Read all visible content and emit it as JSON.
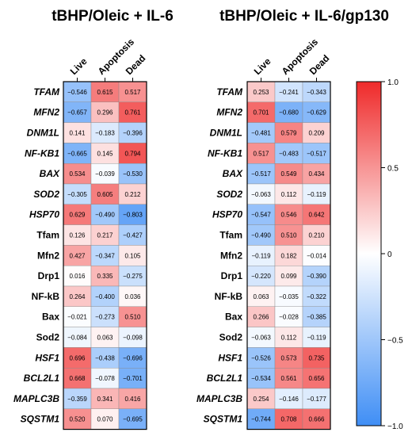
{
  "chart_data": [
    {
      "type": "heatmap",
      "title": "tBHP/Oleic + IL-6",
      "columns": [
        "Live",
        "Apoptosis",
        "Dead"
      ],
      "rows": [
        {
          "label": "TFAM",
          "italic": true,
          "values": [
            -0.546,
            0.615,
            0.517
          ],
          "labels": [
            "−0.546",
            "0.615",
            "0.517"
          ]
        },
        {
          "label": "MFN2",
          "italic": true,
          "values": [
            -0.657,
            0.296,
            0.761
          ],
          "labels": [
            "−0.657",
            "0.296",
            "0.761"
          ]
        },
        {
          "label": "DNM1L",
          "italic": true,
          "values": [
            0.141,
            -0.183,
            -0.396
          ],
          "labels": [
            "0.141",
            "−0.183",
            "−0.396"
          ]
        },
        {
          "label": "NF-KB1",
          "italic": true,
          "values": [
            -0.665,
            0.145,
            0.794
          ],
          "labels": [
            "−0.665",
            "0.145",
            "0.794"
          ]
        },
        {
          "label": "BAX",
          "italic": true,
          "values": [
            0.534,
            -0.039,
            -0.53
          ],
          "labels": [
            "0.534",
            "−0.039",
            "−0.530"
          ]
        },
        {
          "label": "SOD2",
          "italic": true,
          "values": [
            -0.305,
            0.605,
            0.212
          ],
          "labels": [
            "−0.305",
            "0.605",
            "0.212"
          ]
        },
        {
          "label": "HSP70",
          "italic": true,
          "values": [
            0.629,
            -0.49,
            -0.803
          ],
          "labels": [
            "0.629",
            "−0.490",
            "−0.803"
          ]
        },
        {
          "label": "Tfam",
          "italic": false,
          "values": [
            0.126,
            0.217,
            -0.427
          ],
          "labels": [
            "0.126",
            "0.217",
            "−0.427"
          ]
        },
        {
          "label": "Mfn2",
          "italic": false,
          "values": [
            0.427,
            -0.347,
            0.105
          ],
          "labels": [
            "0.427",
            "−0.347",
            "0.105"
          ]
        },
        {
          "label": "Drp1",
          "italic": false,
          "values": [
            0.016,
            0.335,
            -0.275
          ],
          "labels": [
            "0.016",
            "0.335",
            "−0.275"
          ]
        },
        {
          "label": "NF-kB",
          "italic": false,
          "values": [
            0.264,
            -0.4,
            0.036
          ],
          "labels": [
            "0.264",
            "−0.400",
            "0.036"
          ]
        },
        {
          "label": "Bax",
          "italic": false,
          "values": [
            -0.021,
            -0.273,
            0.51
          ],
          "labels": [
            "−0.021",
            "−0.273",
            "0.510"
          ]
        },
        {
          "label": "Sod2",
          "italic": false,
          "values": [
            -0.084,
            0.063,
            -0.098
          ],
          "labels": [
            "−0.084",
            "0.063",
            "−0.098"
          ]
        },
        {
          "label": "HSF1",
          "italic": true,
          "values": [
            0.696,
            -0.438,
            -0.696
          ],
          "labels": [
            "0.696",
            "−0.438",
            "−0.696"
          ]
        },
        {
          "label": "BCL2L1",
          "italic": true,
          "values": [
            0.668,
            -0.078,
            -0.701
          ],
          "labels": [
            "0.668",
            "−0.078",
            "−0.701"
          ]
        },
        {
          "label": "MAPLC3B",
          "italic": true,
          "values": [
            -0.359,
            0.341,
            0.416
          ],
          "labels": [
            "−0.359",
            "0.341",
            "0.416"
          ]
        },
        {
          "label": "SQSTM1",
          "italic": true,
          "values": [
            0.52,
            0.07,
            -0.695
          ],
          "labels": [
            "0.520",
            "0.070",
            "−0.695"
          ]
        }
      ]
    },
    {
      "type": "heatmap",
      "title": "tBHP/Oleic + IL-6/gp130",
      "columns": [
        "Live",
        "Apoptosis",
        "Dead"
      ],
      "rows": [
        {
          "label": "TFAM",
          "italic": true,
          "values": [
            0.253,
            -0.241,
            -0.343
          ],
          "labels": [
            "0.253",
            "−0.241",
            "−0.343"
          ]
        },
        {
          "label": "MFN2",
          "italic": true,
          "values": [
            0.701,
            -0.68,
            -0.629
          ],
          "labels": [
            "0.701",
            "−0.680",
            "−0.629"
          ]
        },
        {
          "label": "DNM1L",
          "italic": true,
          "values": [
            -0.481,
            0.579,
            0.209
          ],
          "labels": [
            "−0.481",
            "0.579",
            "0.209"
          ]
        },
        {
          "label": "NF-KB1",
          "italic": true,
          "values": [
            0.517,
            -0.483,
            -0.517
          ],
          "labels": [
            "0.517",
            "−0.483",
            "−0.517"
          ]
        },
        {
          "label": "BAX",
          "italic": true,
          "values": [
            -0.517,
            0.549,
            0.434
          ],
          "labels": [
            "−0.517",
            "0.549",
            "0.434"
          ]
        },
        {
          "label": "SOD2",
          "italic": true,
          "values": [
            -0.063,
            0.112,
            -0.119
          ],
          "labels": [
            "−0.063",
            "0.112",
            "−0.119"
          ]
        },
        {
          "label": "HSP70",
          "italic": true,
          "values": [
            -0.547,
            0.546,
            0.642
          ],
          "labels": [
            "−0.547",
            "0.546",
            "0.642"
          ]
        },
        {
          "label": "Tfam",
          "italic": false,
          "values": [
            -0.49,
            0.51,
            0.21
          ],
          "labels": [
            "−0.490",
            "0.510",
            "0.210"
          ]
        },
        {
          "label": "Mfn2",
          "italic": false,
          "values": [
            -0.119,
            0.182,
            -0.014
          ],
          "labels": [
            "−0.119",
            "0.182",
            "−0.014"
          ]
        },
        {
          "label": "Drp1",
          "italic": false,
          "values": [
            -0.22,
            0.099,
            -0.39
          ],
          "labels": [
            "−0.220",
            "0.099",
            "−0.390"
          ]
        },
        {
          "label": "NF-kB",
          "italic": false,
          "values": [
            0.063,
            -0.035,
            -0.322
          ],
          "labels": [
            "0.063",
            "−0.035",
            "−0.322"
          ]
        },
        {
          "label": "Bax",
          "italic": false,
          "values": [
            0.266,
            -0.028,
            -0.385
          ],
          "labels": [
            "0.266",
            "−0.028",
            "−0.385"
          ]
        },
        {
          "label": "Sod2",
          "italic": false,
          "values": [
            -0.063,
            0.112,
            -0.119
          ],
          "labels": [
            "−0.063",
            "0.112",
            "−0.119"
          ]
        },
        {
          "label": "HSF1",
          "italic": true,
          "values": [
            -0.526,
            0.573,
            0.735
          ],
          "labels": [
            "−0.526",
            "0.573",
            "0.735"
          ]
        },
        {
          "label": "BCL2L1",
          "italic": true,
          "values": [
            -0.534,
            0.561,
            0.656
          ],
          "labels": [
            "−0.534",
            "0.561",
            "0.656"
          ]
        },
        {
          "label": "MAPLC3B",
          "italic": true,
          "values": [
            0.254,
            -0.146,
            -0.177
          ],
          "labels": [
            "0.254",
            "−0.146",
            "−0.177"
          ]
        },
        {
          "label": "SQSTM1",
          "italic": true,
          "values": [
            -0.744,
            0.708,
            0.666
          ],
          "labels": [
            "−0.744",
            "0.708",
            "0.666"
          ]
        }
      ]
    }
  ],
  "colorbar": {
    "range": [
      -1.0,
      1.0
    ],
    "ticks": [
      1.0,
      0.5,
      0,
      -0.5,
      -1.0
    ],
    "tick_labels": [
      "1.0",
      "0.5",
      "0",
      "−0.5",
      "−1.0"
    ],
    "colors": {
      "negative": "#3f8ef5",
      "zero": "#ffffff",
      "positive": "#ef2a2a"
    }
  }
}
